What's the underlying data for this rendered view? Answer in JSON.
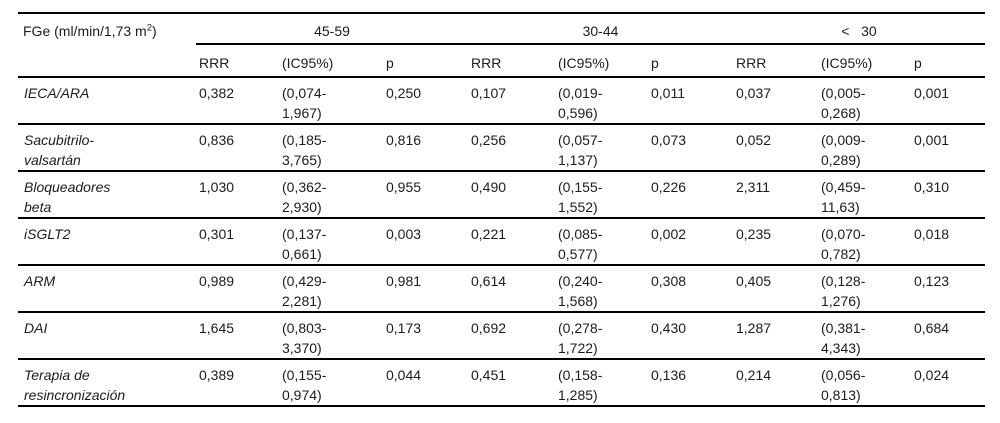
{
  "page": {
    "background_color": "#ffffff",
    "text_color": "#1c1c1c",
    "rule_color": "#000000"
  },
  "table": {
    "corner": {
      "pre": "FGe (ml/min/1,73 m",
      "sup": "2",
      "post": ")"
    },
    "groups": [
      {
        "label": "45-59",
        "col_rrr": "RRR",
        "col_ci": "(IC95%)",
        "col_p": "p"
      },
      {
        "label": "30-44",
        "col_rrr": "RRR",
        "col_ci": "(IC95%)",
        "col_p": "p"
      },
      {
        "label": "<   30",
        "col_rrr": "RRR",
        "col_ci": "(IC95%)",
        "col_p": "p"
      }
    ],
    "rows": [
      {
        "label": "IECA/ARA",
        "g1": {
          "rrr": "0,382",
          "ci": "(0,074-\n1,967)",
          "p": "0,250"
        },
        "g2": {
          "rrr": "0,107",
          "ci": "(0,019-\n0,596)",
          "p": "0,011"
        },
        "g3": {
          "rrr": "0,037",
          "ci": "(0,005-\n0,268)",
          "p": "0,001"
        }
      },
      {
        "label": "Sacubitrilo-\nvalsartán",
        "g1": {
          "rrr": "0,836",
          "ci": "(0,185-\n3,765)",
          "p": "0,816"
        },
        "g2": {
          "rrr": "0,256",
          "ci": "(0,057-\n1,137)",
          "p": "0,073"
        },
        "g3": {
          "rrr": "0,052",
          "ci": "(0,009-\n0,289)",
          "p": "0,001"
        }
      },
      {
        "label": "Bloqueadores\nbeta",
        "g1": {
          "rrr": "1,030",
          "ci": "(0,362-\n2,930)",
          "p": "0,955"
        },
        "g2": {
          "rrr": "0,490",
          "ci": "(0,155-\n1,552)",
          "p": "0,226"
        },
        "g3": {
          "rrr": "2,311",
          "ci": "(0,459-\n11,63)",
          "p": "0,310"
        }
      },
      {
        "label": "iSGLT2",
        "g1": {
          "rrr": "0,301",
          "ci": "(0,137-\n0,661)",
          "p": "0,003"
        },
        "g2": {
          "rrr": "0,221",
          "ci": "(0,085-\n0,577)",
          "p": "0,002"
        },
        "g3": {
          "rrr": "0,235",
          "ci": "(0,070-\n0,782)",
          "p": "0,018"
        }
      },
      {
        "label": "ARM",
        "g1": {
          "rrr": "0,989",
          "ci": "(0,429-\n2,281)",
          "p": "0,981"
        },
        "g2": {
          "rrr": "0,614",
          "ci": "(0,240-\n1,568)",
          "p": "0,308"
        },
        "g3": {
          "rrr": "0,405",
          "ci": "(0,128-\n1,276)",
          "p": "0,123"
        }
      },
      {
        "label": "DAI",
        "g1": {
          "rrr": "1,645",
          "ci": "(0,803-\n3,370)",
          "p": "0,173"
        },
        "g2": {
          "rrr": "0,692",
          "ci": "(0,278-\n1,722)",
          "p": "0,430"
        },
        "g3": {
          "rrr": "1,287",
          "ci": "(0,381-\n4,343)",
          "p": "0,684"
        }
      },
      {
        "label": "Terapia de\nresincronización",
        "g1": {
          "rrr": "0,389",
          "ci": "(0,155-\n0,974)",
          "p": "0,044"
        },
        "g2": {
          "rrr": "0,451",
          "ci": "(0,158-\n1,285)",
          "p": "0,136"
        },
        "g3": {
          "rrr": "0,214",
          "ci": "(0,056-\n0,813)",
          "p": "0,024"
        }
      }
    ]
  }
}
